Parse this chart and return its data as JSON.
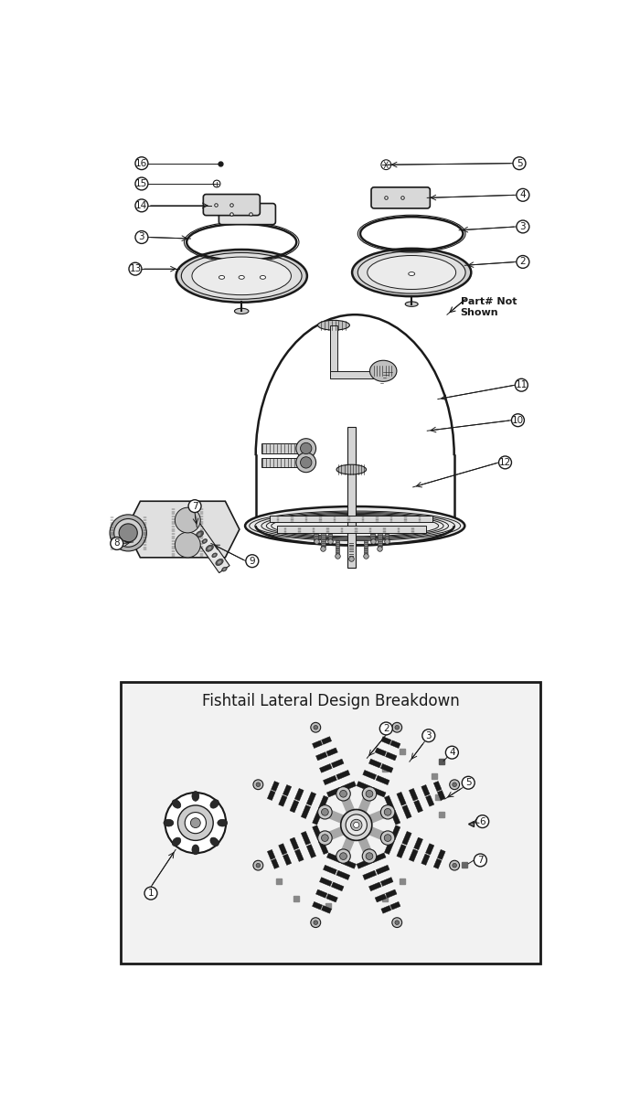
{
  "bg_color": "#ffffff",
  "line_color": "#1a1a1a",
  "fishtail_title": "Fishtail Lateral Design Breakdown",
  "fig_width": 7.0,
  "fig_height": 12.0,
  "dpi": 100
}
